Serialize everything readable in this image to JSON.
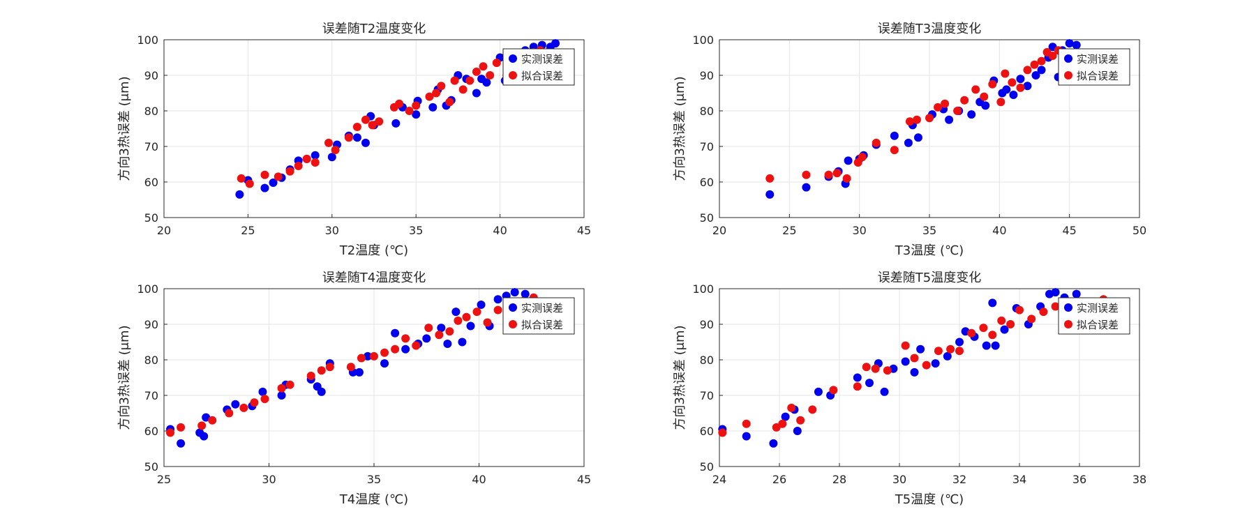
{
  "figure": {
    "colors": {
      "measured": "#0000ee",
      "fitted": "#ee1111",
      "grid": "#e4e4e4",
      "axis": "#262626"
    },
    "legend": {
      "measured_label": "实测误差",
      "fitted_label": "拟合误差",
      "placement": "top-right"
    }
  },
  "chart_data": [
    {
      "type": "scatter",
      "title": "误差随T2温度变化",
      "xlabel": "T2温度 (℃)",
      "ylabel": "方向3热误差 (μm)",
      "xlim": [
        20,
        45
      ],
      "ylim": [
        50,
        100
      ],
      "xticks": [
        "20",
        "25",
        "30",
        "35",
        "40",
        "45"
      ],
      "yticks": [
        "50",
        "60",
        "70",
        "80",
        "90",
        "100"
      ],
      "grid": true,
      "series": [
        {
          "name": "实测误差",
          "color": "#0000ee",
          "x": [
            24.5,
            25.0,
            26.0,
            26.5,
            27.0,
            27.5,
            28.0,
            28.5,
            29.0,
            30.0,
            30.3,
            31.0,
            31.5,
            32.0,
            32.3,
            32.5,
            33.8,
            34.2,
            35.0,
            35.1,
            36.0,
            36.3,
            36.8,
            37.1,
            37.5,
            38.0,
            38.6,
            38.9,
            39.2,
            40.0,
            40.3,
            40.8,
            41.5,
            42.0,
            42.5,
            43.0,
            43.3
          ],
          "y": [
            56.5,
            60.5,
            58.3,
            59.8,
            61.2,
            63.5,
            66.0,
            66.5,
            67.5,
            67.0,
            70.5,
            73.0,
            72.5,
            71.0,
            78.5,
            76.0,
            76.5,
            81.0,
            79.0,
            82.8,
            81.0,
            86.0,
            81.5,
            83.0,
            90.0,
            89.0,
            85.0,
            89.0,
            88.0,
            95.0,
            88.5,
            93.0,
            97.0,
            98.0,
            98.5,
            98.0,
            99.0
          ]
        },
        {
          "name": "拟合误差",
          "color": "#ee1111",
          "x": [
            24.6,
            25.1,
            26.0,
            26.8,
            27.5,
            28.0,
            28.5,
            29.0,
            29.8,
            30.2,
            31.0,
            31.5,
            32.0,
            32.4,
            32.8,
            33.7,
            34.0,
            34.6,
            35.0,
            35.8,
            36.2,
            36.5,
            37.0,
            37.3,
            37.8,
            38.2,
            38.6,
            39.0,
            39.4,
            39.8,
            40.4,
            40.9,
            41.5,
            42.0,
            42.4
          ],
          "y": [
            61.0,
            59.5,
            62.0,
            61.5,
            63.0,
            64.5,
            66.5,
            65.5,
            71.0,
            69.0,
            72.5,
            75.5,
            77.5,
            76.0,
            77.0,
            81.0,
            82.0,
            80.0,
            81.5,
            84.0,
            85.0,
            87.0,
            82.5,
            88.5,
            86.0,
            88.5,
            91.0,
            92.5,
            90.0,
            93.5,
            90.0,
            92.5,
            95.0,
            96.5,
            97.0
          ]
        }
      ]
    },
    {
      "type": "scatter",
      "title": "误差随T3温度变化",
      "xlabel": "T3温度 (℃)",
      "ylabel": "方向3热误差 (μm)",
      "xlim": [
        20,
        50
      ],
      "ylim": [
        50,
        100
      ],
      "xticks": [
        "20",
        "25",
        "30",
        "35",
        "40",
        "45",
        "50"
      ],
      "yticks": [
        "50",
        "60",
        "70",
        "80",
        "90",
        "100"
      ],
      "grid": true,
      "series": [
        {
          "name": "实测误差",
          "color": "#0000ee",
          "x": [
            23.6,
            26.2,
            27.8,
            28.5,
            29.0,
            29.2,
            30.0,
            30.3,
            31.2,
            32.5,
            33.5,
            33.8,
            34.2,
            35.2,
            36.0,
            36.4,
            37.1,
            38.0,
            38.6,
            39.0,
            39.6,
            40.2,
            40.5,
            41.0,
            41.5,
            42.0,
            42.6,
            43.0,
            43.5,
            43.8,
            44.2,
            44.5,
            45.0,
            45.5
          ],
          "y": [
            56.5,
            58.5,
            61.5,
            63.0,
            59.5,
            66.0,
            66.5,
            67.5,
            70.5,
            73.0,
            71.0,
            76.0,
            72.5,
            79.0,
            80.5,
            77.5,
            80.0,
            79.0,
            82.5,
            81.5,
            88.5,
            85.0,
            86.0,
            84.5,
            89.0,
            87.0,
            90.0,
            91.5,
            95.0,
            98.0,
            89.5,
            97.0,
            99.0,
            98.5
          ]
        },
        {
          "name": "拟合误差",
          "color": "#ee1111",
          "x": [
            23.6,
            26.2,
            27.8,
            28.4,
            29.1,
            29.9,
            30.2,
            31.2,
            32.5,
            33.6,
            34.1,
            35.0,
            35.6,
            36.1,
            37.0,
            37.5,
            38.3,
            38.9,
            39.5,
            40.1,
            40.4,
            40.9,
            41.5,
            42.0,
            42.5,
            43.0,
            43.4,
            43.8,
            44.2
          ],
          "y": [
            61.0,
            62.0,
            62.0,
            62.5,
            61.0,
            65.5,
            67.0,
            71.0,
            69.0,
            77.0,
            77.5,
            78.0,
            81.0,
            82.0,
            80.0,
            83.0,
            86.0,
            84.0,
            87.5,
            82.5,
            90.5,
            88.0,
            86.5,
            91.5,
            93.0,
            94.0,
            96.5,
            95.5,
            97.0
          ]
        }
      ]
    },
    {
      "type": "scatter",
      "title": "误差随T4温度变化",
      "xlabel": "T4温度 (℃)",
      "ylabel": "方向3热误差 (μm)",
      "xlim": [
        25,
        45
      ],
      "ylim": [
        50,
        100
      ],
      "xticks": [
        "25",
        "30",
        "35",
        "40",
        "45"
      ],
      "yticks": [
        "50",
        "60",
        "70",
        "80",
        "90",
        "100"
      ],
      "grid": true,
      "series": [
        {
          "name": "实测误差",
          "color": "#0000ee",
          "x": [
            25.3,
            25.8,
            26.7,
            26.9,
            27.0,
            28.0,
            28.4,
            29.2,
            29.7,
            30.6,
            30.8,
            32.0,
            32.3,
            32.5,
            32.9,
            34.0,
            34.3,
            34.7,
            35.5,
            36.0,
            36.5,
            37.1,
            37.5,
            38.2,
            38.5,
            38.9,
            39.2,
            39.6,
            40.1,
            40.5,
            40.9,
            41.3,
            41.7,
            42.2
          ],
          "y": [
            60.5,
            56.5,
            59.5,
            58.5,
            63.8,
            66.0,
            67.5,
            67.0,
            71.0,
            70.0,
            73.0,
            74.5,
            72.5,
            71.0,
            79.0,
            76.5,
            76.5,
            81.0,
            79.0,
            87.5,
            83.0,
            84.5,
            86.0,
            89.0,
            84.5,
            93.5,
            85.0,
            89.5,
            95.5,
            89.5,
            97.0,
            98.0,
            99.0,
            98.5
          ]
        },
        {
          "name": "拟合误差",
          "color": "#ee1111",
          "x": [
            25.3,
            25.8,
            26.8,
            27.3,
            28.1,
            28.8,
            29.3,
            29.8,
            30.6,
            31.0,
            32.0,
            32.5,
            32.9,
            33.9,
            34.4,
            35.0,
            35.5,
            36.0,
            36.5,
            37.0,
            37.6,
            38.1,
            38.6,
            39.0,
            39.4,
            39.9,
            40.4,
            40.9,
            41.5,
            42.1,
            42.6
          ],
          "y": [
            59.5,
            61.0,
            61.5,
            63.0,
            65.0,
            66.5,
            68.0,
            69.0,
            72.0,
            73.0,
            75.5,
            77.0,
            78.0,
            78.0,
            80.5,
            81.0,
            82.0,
            83.0,
            86.0,
            84.0,
            89.0,
            87.0,
            88.0,
            91.0,
            92.0,
            93.5,
            90.5,
            94.0,
            95.0,
            96.5,
            97.5
          ]
        }
      ]
    },
    {
      "type": "scatter",
      "title": "误差随T5温度变化",
      "xlabel": "T5温度 (℃)",
      "ylabel": "方向3热误差 (μm)",
      "xlim": [
        24,
        38
      ],
      "ylim": [
        50,
        100
      ],
      "xticks": [
        "24",
        "26",
        "28",
        "30",
        "32",
        "34",
        "36",
        "38"
      ],
      "yticks": [
        "50",
        "60",
        "70",
        "80",
        "90",
        "100"
      ],
      "grid": true,
      "series": [
        {
          "name": "实测误差",
          "color": "#0000ee",
          "x": [
            24.1,
            24.9,
            25.8,
            26.2,
            26.5,
            26.6,
            27.3,
            27.7,
            28.6,
            29.0,
            29.3,
            29.5,
            29.8,
            30.2,
            30.5,
            30.7,
            31.2,
            31.6,
            32.0,
            32.2,
            32.5,
            32.9,
            33.1,
            33.2,
            33.5,
            33.9,
            34.3,
            34.7,
            35.0,
            35.2,
            35.5,
            35.9,
            36.2
          ],
          "y": [
            60.5,
            58.5,
            56.5,
            64.0,
            66.0,
            60.0,
            71.0,
            70.0,
            75.0,
            73.5,
            79.0,
            71.0,
            77.5,
            79.5,
            76.5,
            83.0,
            79.0,
            81.0,
            85.0,
            88.0,
            86.5,
            84.0,
            96.0,
            84.0,
            88.5,
            94.5,
            90.0,
            95.0,
            98.5,
            99.0,
            97.5,
            98.5,
            96.0
          ]
        },
        {
          "name": "拟合误差",
          "color": "#ee1111",
          "x": [
            24.1,
            24.9,
            25.9,
            26.1,
            26.4,
            26.7,
            27.1,
            27.8,
            28.6,
            28.9,
            29.2,
            29.6,
            30.2,
            30.5,
            30.9,
            31.3,
            31.7,
            32.0,
            32.4,
            32.8,
            33.1,
            33.4,
            33.7,
            34.0,
            34.4,
            34.8,
            35.2,
            35.6,
            36.1,
            36.8
          ],
          "y": [
            59.5,
            62.0,
            61.0,
            62.0,
            66.5,
            63.0,
            66.0,
            71.5,
            72.5,
            78.0,
            77.5,
            77.0,
            84.0,
            80.5,
            78.5,
            82.5,
            83.0,
            82.5,
            87.5,
            89.0,
            87.0,
            91.0,
            90.0,
            94.0,
            91.5,
            93.5,
            95.0,
            94.0,
            96.0,
            97.0
          ]
        }
      ]
    }
  ]
}
